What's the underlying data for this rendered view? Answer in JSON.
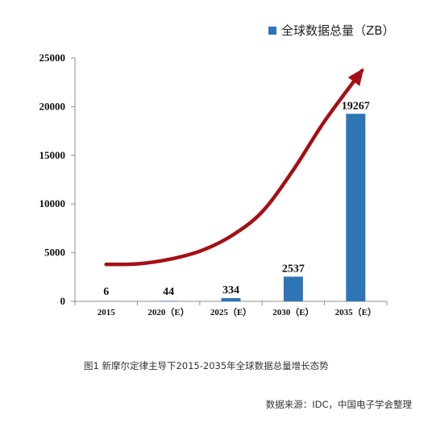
{
  "legend": {
    "label": "全球数据总量（ZB）",
    "color": "#2E75B6"
  },
  "caption": "图1 新摩尔定律主导下2015-2035年全球数据总量增长态势",
  "source": "数据来源：IDC，中国电子学会整理",
  "colors": {
    "bar": "#2E75B6",
    "trend": "#A50F15",
    "axis": "#8C8C8C"
  },
  "chart_data": {
    "type": "bar",
    "categories": [
      "2015",
      "2020（E）",
      "2025（E）",
      "2030（E）",
      "2035（E）"
    ],
    "series": [
      {
        "name": "全球数据总量（ZB）",
        "values": [
          6,
          44,
          334,
          2537,
          19267
        ]
      }
    ],
    "data_labels": [
      "6",
      "44",
      "334",
      "2537",
      "19267"
    ],
    "ylim": [
      0,
      25000
    ],
    "yticks": [
      0,
      5000,
      10000,
      15000,
      20000,
      25000
    ],
    "ytick_labels": [
      "0",
      "5000",
      "10000",
      "15000",
      "20000",
      "25000"
    ],
    "grid": false,
    "legend_position": "top-right",
    "trend_arrow": {
      "color": "#A50F15",
      "x": [
        0,
        0.5,
        1,
        1.5,
        2,
        2.5,
        3,
        3.5,
        4.1
      ],
      "y": [
        3800,
        3850,
        4300,
        5150,
        6700,
        9200,
        13500,
        18500,
        23700
      ]
    }
  }
}
